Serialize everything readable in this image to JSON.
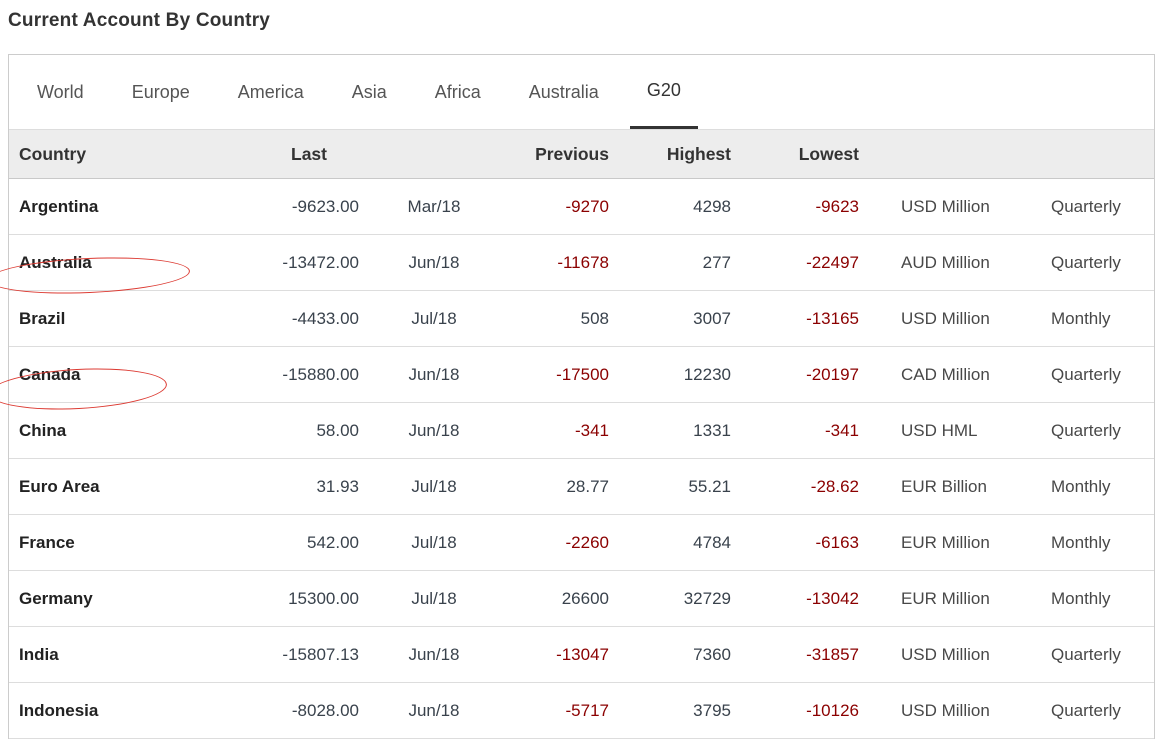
{
  "page_title": "Current Account By Country",
  "tabs": [
    {
      "label": "World",
      "active": false
    },
    {
      "label": "Europe",
      "active": false
    },
    {
      "label": "America",
      "active": false
    },
    {
      "label": "Asia",
      "active": false
    },
    {
      "label": "Africa",
      "active": false
    },
    {
      "label": "Australia",
      "active": false
    },
    {
      "label": "G20",
      "active": true
    }
  ],
  "table": {
    "headers": {
      "country": "Country",
      "last": "Last",
      "previous": "Previous",
      "highest": "Highest",
      "lowest": "Lowest"
    },
    "rows": [
      {
        "country": "Argentina",
        "last": "-9623.00",
        "date": "Mar/18",
        "previous": "-9270",
        "highest": "4298",
        "lowest": "-9623",
        "unit": "USD Million",
        "frequency": "Quarterly",
        "annotated": false
      },
      {
        "country": "Australia",
        "last": "-13472.00",
        "date": "Jun/18",
        "previous": "-11678",
        "highest": "277",
        "lowest": "-22497",
        "unit": "AUD Million",
        "frequency": "Quarterly",
        "annotated": true
      },
      {
        "country": "Brazil",
        "last": "-4433.00",
        "date": "Jul/18",
        "previous": "508",
        "highest": "3007",
        "lowest": "-13165",
        "unit": "USD Million",
        "frequency": "Monthly",
        "annotated": false
      },
      {
        "country": "Canada",
        "last": "-15880.00",
        "date": "Jun/18",
        "previous": "-17500",
        "highest": "12230",
        "lowest": "-20197",
        "unit": "CAD Million",
        "frequency": "Quarterly",
        "annotated": true
      },
      {
        "country": "China",
        "last": "58.00",
        "date": "Jun/18",
        "previous": "-341",
        "highest": "1331",
        "lowest": "-341",
        "unit": "USD HML",
        "frequency": "Quarterly",
        "annotated": false
      },
      {
        "country": "Euro Area",
        "last": "31.93",
        "date": "Jul/18",
        "previous": "28.77",
        "highest": "55.21",
        "lowest": "-28.62",
        "unit": "EUR Billion",
        "frequency": "Monthly",
        "annotated": false
      },
      {
        "country": "France",
        "last": "542.00",
        "date": "Jul/18",
        "previous": "-2260",
        "highest": "4784",
        "lowest": "-6163",
        "unit": "EUR Million",
        "frequency": "Monthly",
        "annotated": false
      },
      {
        "country": "Germany",
        "last": "15300.00",
        "date": "Jul/18",
        "previous": "26600",
        "highest": "32729",
        "lowest": "-13042",
        "unit": "EUR Million",
        "frequency": "Monthly",
        "annotated": false
      },
      {
        "country": "India",
        "last": "-15807.13",
        "date": "Jun/18",
        "previous": "-13047",
        "highest": "7360",
        "lowest": "-31857",
        "unit": "USD Million",
        "frequency": "Quarterly",
        "annotated": false
      },
      {
        "country": "Indonesia",
        "last": "-8028.00",
        "date": "Jun/18",
        "previous": "-5717",
        "highest": "3795",
        "lowest": "-10126",
        "unit": "USD Million",
        "frequency": "Quarterly",
        "annotated": false
      }
    ]
  },
  "colors": {
    "negative_value": "#8b0000",
    "regular_value": "#39424c",
    "annotation_red": "#dc3a32",
    "active_tab_underline": "#333333",
    "header_background": "#ededed"
  }
}
